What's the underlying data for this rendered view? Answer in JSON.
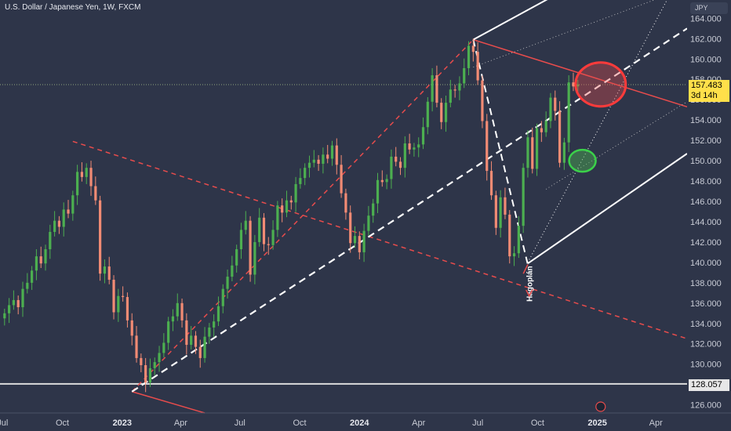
{
  "title": "U.S. Dollar / Japanese Yen, 1W, FXCM",
  "currency_label": "JPY",
  "current_price": "157.483",
  "countdown": "3d 14h",
  "level_label": "128.057",
  "annotation": "Наgoplán",
  "colors": {
    "background": "#2e3549",
    "up": "#4caf50",
    "down": "#f28b74",
    "red_line": "#e84c4c",
    "white_line": "#ffffff",
    "price_line": "#ffe04a"
  },
  "chart_data": {
    "type": "candlestick",
    "title": "U.S. Dollar / Japanese Yen, 1W, FXCM",
    "y_unit": "JPY",
    "ylim": [
      125.2,
      165.8
    ],
    "y_ticks": [
      "164.000",
      "162.000",
      "160.000",
      "158.000",
      "156.000",
      "154.000",
      "152.000",
      "150.000",
      "148.000",
      "146.000",
      "144.000",
      "142.000",
      "140.000",
      "138.000",
      "136.000",
      "134.000",
      "132.000",
      "130.000",
      "128.000",
      "126.000"
    ],
    "x_ticks": [
      "Jul",
      "Oct",
      "2023",
      "Apr",
      "Jul",
      "Oct",
      "2024",
      "Apr",
      "Jul",
      "Oct",
      "2025",
      "Apr"
    ],
    "x_ticks_bold": [
      "2023",
      "2024",
      "2025"
    ],
    "x_range": [
      "2022-06-27",
      "2025-05-19"
    ],
    "x_tick_dates": [
      "2022-07-01",
      "2022-10-01",
      "2023-01-01",
      "2023-04-01",
      "2023-07-01",
      "2023-10-01",
      "2024-01-01",
      "2024-04-01",
      "2024-07-01",
      "2024-10-01",
      "2025-01-01",
      "2025-04-01"
    ],
    "closes_weekly": [
      135.0,
      135.8,
      136.3,
      135.6,
      137.4,
      138.0,
      139.2,
      140.6,
      139.9,
      141.3,
      143.0,
      144.1,
      143.5,
      145.2,
      144.8,
      146.6,
      148.9,
      148.4,
      149.3,
      147.5,
      146.1,
      138.9,
      139.6,
      138.3,
      135.1,
      136.7,
      136.6,
      134.3,
      132.8,
      130.6,
      129.9,
      128.2,
      129.6,
      130.2,
      131.1,
      132.1,
      134.2,
      134.7,
      136.0,
      134.3,
      131.9,
      132.8,
      131.7,
      130.6,
      132.7,
      133.6,
      134.2,
      135.7,
      137.4,
      138.6,
      139.7,
      141.3,
      143.2,
      144.1,
      138.8,
      142.0,
      144.4,
      141.8,
      141.7,
      143.2,
      145.6,
      144.9,
      146.1,
      145.9,
      147.7,
      148.3,
      149.3,
      149.8,
      150.1,
      149.7,
      150.6,
      150.2,
      151.5,
      149.6,
      146.8,
      144.9,
      141.9,
      142.6,
      141.0,
      143.1,
      144.6,
      145.8,
      148.1,
      147.9,
      148.2,
      150.4,
      149.9,
      149.3,
      151.7,
      151.1,
      151.3,
      151.6,
      153.3,
      155.8,
      158.4,
      155.7,
      153.8,
      155.7,
      157.0,
      156.9,
      157.6,
      159.1,
      161.3,
      160.7,
      157.9,
      153.9,
      149.0,
      146.6,
      143.4,
      146.4,
      144.7,
      140.6,
      140.9,
      143.6,
      149.3,
      152.3,
      149.2,
      153.2,
      152.8,
      153.9,
      156.2,
      154.9,
      149.8,
      151.8,
      157.7,
      157.3,
      157.5
    ],
    "closes_first_week": "2022-07-04",
    "annotation_ovals": [
      {
        "center_date": "2025-01-06",
        "center_price": 157.5,
        "color": "red"
      },
      {
        "center_date": "2024-12-09",
        "center_price": 150.0,
        "color": "green"
      }
    ],
    "horizontal_level": 128.057,
    "current_price": 157.483
  }
}
